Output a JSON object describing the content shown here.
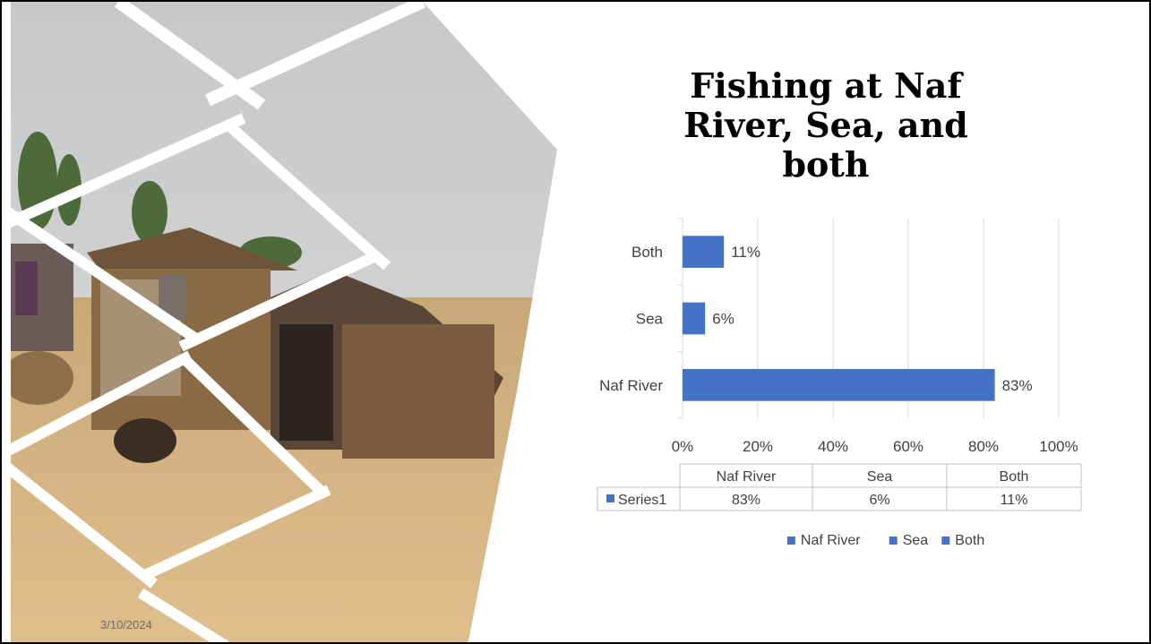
{
  "slide": {
    "title": "Fishing at Naf River, Sea, and both",
    "date": "3/10/2024"
  },
  "colors": {
    "bar": "#4472c4",
    "grid": "#d9d9d9",
    "text": "#404040"
  },
  "chart_data": {
    "type": "bar",
    "orientation": "horizontal",
    "title": "Fishing at Naf River, Sea, and both",
    "categories": [
      "Naf River",
      "Sea",
      "Both"
    ],
    "series": [
      {
        "name": "Series1",
        "values": [
          83,
          6,
          11
        ],
        "labels": [
          "83%",
          "6%",
          "11%"
        ]
      }
    ],
    "xlim": [
      0,
      100
    ],
    "x_ticks": [
      "0%",
      "20%",
      "40%",
      "60%",
      "80%",
      "100%"
    ],
    "x_tick_values": [
      0,
      20,
      40,
      60,
      80,
      100
    ],
    "grid": true,
    "data_table": {
      "headers": [
        "Naf River",
        "Sea",
        "Both"
      ],
      "row_label": "Series1",
      "row": [
        "83%",
        "6%",
        "11%"
      ]
    },
    "legend": {
      "position": "bottom",
      "entries": [
        "Naf River",
        "Sea",
        "Both"
      ]
    }
  }
}
